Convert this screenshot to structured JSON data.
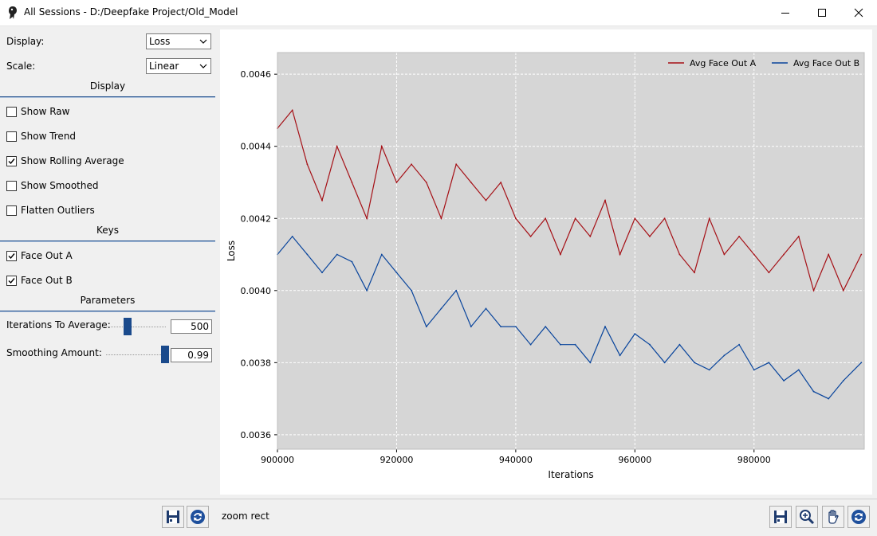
{
  "window": {
    "title": "All Sessions - D:/Deepfake Project/Old_Model"
  },
  "sidebar": {
    "display_label": "Display:",
    "display_value": "Loss",
    "scale_label": "Scale:",
    "scale_value": "Linear",
    "section_display": "Display",
    "options": [
      {
        "label": "Show Raw",
        "checked": false
      },
      {
        "label": "Show Trend",
        "checked": false
      },
      {
        "label": "Show Rolling Average",
        "checked": true
      },
      {
        "label": "Show Smoothed",
        "checked": false
      },
      {
        "label": "Flatten Outliers",
        "checked": false
      }
    ],
    "section_keys": "Keys",
    "keys": [
      {
        "label": "Face Out A",
        "checked": true
      },
      {
        "label": "Face Out B",
        "checked": true
      }
    ],
    "section_parameters": "Parameters",
    "iterations_label": "Iterations To Average:",
    "iterations_value": "500",
    "iterations_level": 0.4,
    "smoothing_label": "Smoothing Amount:",
    "smoothing_value": "0.99",
    "smoothing_level": 0.99
  },
  "status": {
    "text": "zoom rect"
  },
  "colors": {
    "series_a": "#a50f15",
    "series_b": "#08449c",
    "plot_bg": "#d6d6d6"
  },
  "chart_data": {
    "type": "line",
    "xlabel": "Iterations",
    "ylabel": "Loss",
    "xlim": [
      900000,
      998500
    ],
    "ylim": [
      0.00356,
      0.00466
    ],
    "xticks": [
      "900000",
      "920000",
      "940000",
      "960000",
      "980000"
    ],
    "xtick_values": [
      900000,
      920000,
      940000,
      960000,
      980000
    ],
    "yticks": [
      "0.0036",
      "0.0038",
      "0.0040",
      "0.0042",
      "0.0044",
      "0.0046"
    ],
    "ytick_values": [
      0.0036,
      0.0038,
      0.004,
      0.0042,
      0.0044,
      0.0046
    ],
    "grid": true,
    "legend": "top-right",
    "series": [
      {
        "name": "Avg Face Out A",
        "x": [
          900000,
          902500,
          905000,
          907500,
          910000,
          912500,
          915000,
          917500,
          920000,
          922500,
          925000,
          927500,
          930000,
          932500,
          935000,
          937500,
          940000,
          942500,
          945000,
          947500,
          950000,
          952500,
          955000,
          957500,
          960000,
          962500,
          965000,
          967500,
          970000,
          972500,
          975000,
          977500,
          980000,
          982500,
          985000,
          987500,
          990000,
          992500,
          995000,
          998000
        ],
        "y": [
          0.00445,
          0.0045,
          0.00435,
          0.00425,
          0.0044,
          0.0043,
          0.0042,
          0.0044,
          0.0043,
          0.00435,
          0.0043,
          0.0042,
          0.00435,
          0.0043,
          0.00425,
          0.0043,
          0.0042,
          0.00415,
          0.0042,
          0.0041,
          0.0042,
          0.00415,
          0.00425,
          0.0041,
          0.0042,
          0.00415,
          0.0042,
          0.0041,
          0.00405,
          0.0042,
          0.0041,
          0.00415,
          0.0041,
          0.00405,
          0.0041,
          0.00415,
          0.004,
          0.0041,
          0.004,
          0.0041
        ]
      },
      {
        "name": "Avg Face Out B",
        "x": [
          900000,
          902500,
          905000,
          907500,
          910000,
          912500,
          915000,
          917500,
          920000,
          922500,
          925000,
          927500,
          930000,
          932500,
          935000,
          937500,
          940000,
          942500,
          945000,
          947500,
          950000,
          952500,
          955000,
          957500,
          960000,
          962500,
          965000,
          967500,
          970000,
          972500,
          975000,
          977500,
          980000,
          982500,
          985000,
          987500,
          990000,
          992500,
          995000,
          998000
        ],
        "y": [
          0.0041,
          0.00415,
          0.0041,
          0.00405,
          0.0041,
          0.00408,
          0.004,
          0.0041,
          0.00405,
          0.004,
          0.0039,
          0.00395,
          0.004,
          0.0039,
          0.00395,
          0.0039,
          0.0039,
          0.00385,
          0.0039,
          0.00385,
          0.00385,
          0.0038,
          0.0039,
          0.00382,
          0.00388,
          0.00385,
          0.0038,
          0.00385,
          0.0038,
          0.00378,
          0.00382,
          0.00385,
          0.00378,
          0.0038,
          0.00375,
          0.00378,
          0.00372,
          0.0037,
          0.00375,
          0.0038
        ]
      }
    ]
  }
}
